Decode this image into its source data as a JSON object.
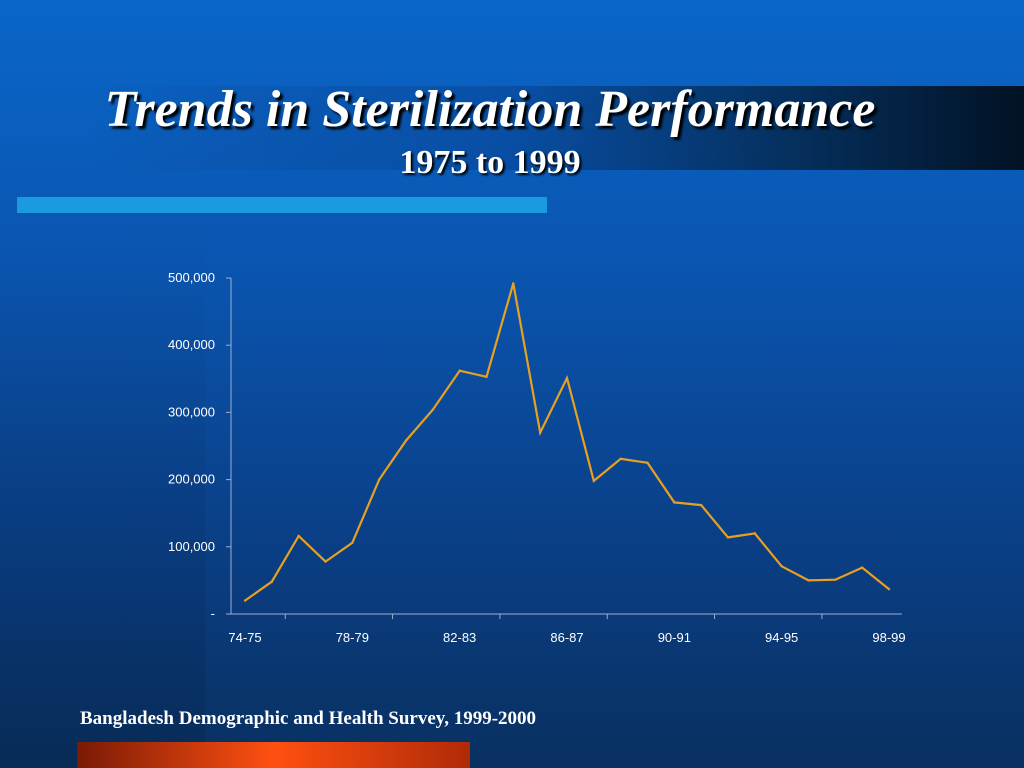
{
  "slide": {
    "title": "Trends in Sterilization Performance",
    "subtitle": "1975 to 1999",
    "source": "Bangladesh Demographic and Health Survey, 1999-2000"
  },
  "colors": {
    "line": "#e8a020",
    "axis": "#9ab0d0",
    "text": "#ffffff",
    "accent_bar": "#1a9be0",
    "footer_bar": "#ff5010"
  },
  "chart_data": {
    "type": "line",
    "title": "",
    "xlabel": "",
    "ylabel": "",
    "x": [
      "74-75",
      "75-76",
      "76-77",
      "77-78",
      "78-79",
      "79-80",
      "80-81",
      "81-82",
      "82-83",
      "83-84",
      "84-85",
      "85-86",
      "86-87",
      "87-88",
      "88-89",
      "89-90",
      "90-91",
      "91-92",
      "92-93",
      "93-94",
      "94-95",
      "95-96",
      "96-97",
      "97-98",
      "98-99"
    ],
    "series": [
      {
        "values": [
          20000,
          48000,
          116000,
          78000,
          106000,
          200000,
          258000,
          304000,
          362000,
          353000,
          492000,
          270000,
          351000,
          198000,
          231000,
          225000,
          166000,
          162000,
          114000,
          120000,
          71000,
          50000,
          51000,
          69000,
          37000
        ]
      }
    ],
    "x_tick_labels": [
      "74-75",
      "78-79",
      "82-83",
      "86-87",
      "90-91",
      "94-95",
      "98-99"
    ],
    "y_tick_labels": [
      "-",
      "100,000",
      "200,000",
      "300,000",
      "400,000",
      "500,000"
    ],
    "y_ticks": [
      0,
      100000,
      200000,
      300000,
      400000,
      500000
    ],
    "ylim": [
      0,
      500000
    ],
    "grid": false,
    "legend": "none"
  }
}
